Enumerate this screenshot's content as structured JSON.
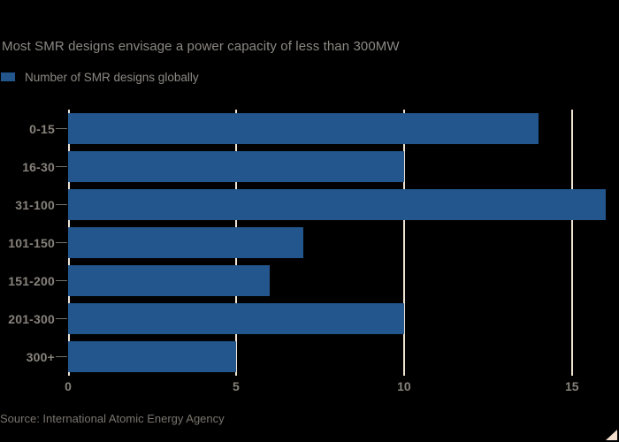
{
  "colors": {
    "background": "#000000",
    "bar": "#22568C",
    "gridline": "#F0E4D4",
    "title_text": "#8C8983",
    "axis_text": "#87827B",
    "source_text": "#7A756E",
    "corner_triangle": "#F2DFCE"
  },
  "header": {
    "title": "Most SMR designs envisage a power capacity of less than 300MW"
  },
  "legend": {
    "label": "Number of SMR designs globally"
  },
  "chart_data": {
    "type": "bar",
    "orientation": "horizontal",
    "title": "Most SMR designs envisage a power capacity of less than 300MW",
    "series_name": "Number of SMR designs globally",
    "categories": [
      "0-15",
      "16-30",
      "31-100",
      "101-150",
      "151-200",
      "201-300",
      "300+"
    ],
    "values": [
      14,
      10,
      16,
      7,
      6,
      10,
      5
    ],
    "xlabel": "",
    "x_ticks": [
      0,
      5,
      10,
      15
    ],
    "xlim": [
      0,
      16.4
    ],
    "grid": "vertical",
    "legend_position": "top-left"
  },
  "footer": {
    "source": "Source: International Atomic Energy Agency"
  }
}
